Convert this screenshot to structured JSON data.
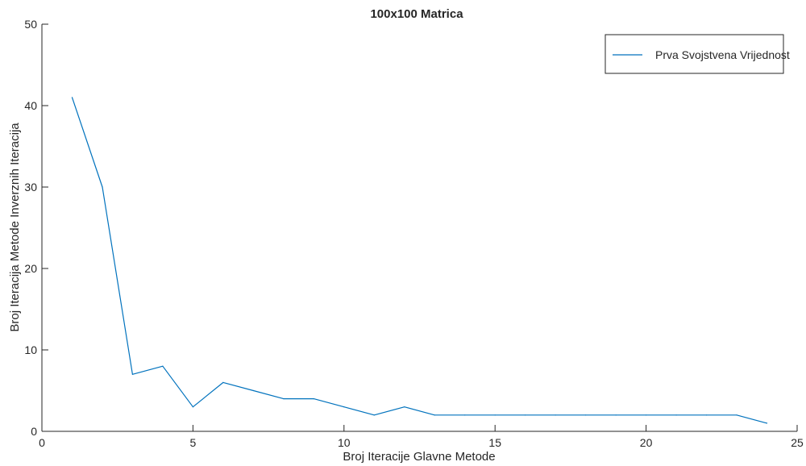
{
  "chart_data": {
    "type": "line",
    "title": "100x100 Matrica",
    "xlabel": "Broj Iteracije Glavne Metode",
    "ylabel": "Broj Iteracija Metode Inverznih Iteracija",
    "xlim": [
      0,
      25
    ],
    "ylim": [
      0,
      50
    ],
    "xticks": [
      0,
      5,
      10,
      15,
      20,
      25
    ],
    "yticks": [
      0,
      10,
      20,
      30,
      40,
      50
    ],
    "grid": false,
    "legend_position": "top-right",
    "series": [
      {
        "name": "Prva Svojstvena Vrijednost",
        "color": "#0072bd",
        "x": [
          1,
          2,
          3,
          4,
          5,
          6,
          7,
          8,
          9,
          10,
          11,
          12,
          13,
          14,
          15,
          16,
          17,
          18,
          19,
          20,
          21,
          22,
          23,
          24
        ],
        "y": [
          41,
          30,
          7,
          8,
          3,
          6,
          5,
          4,
          4,
          3,
          2,
          3,
          2,
          2,
          2,
          2,
          2,
          2,
          2,
          2,
          2,
          2,
          2,
          1
        ]
      }
    ]
  }
}
